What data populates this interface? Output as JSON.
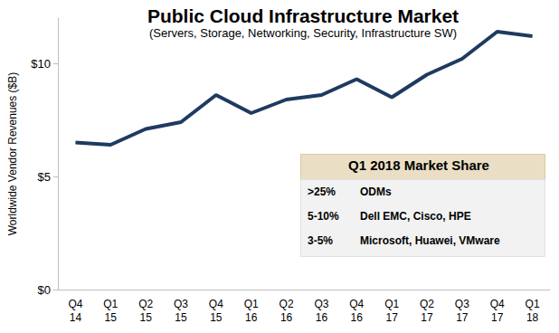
{
  "chart_data": {
    "type": "line",
    "title": "Public Cloud Infrastructure Market",
    "subtitle": "(Servers, Storage, Networking, Security, Infrastructure SW)",
    "y_label": "Worldwide Vendor Revenues ($B)",
    "categories": [
      "Q4\n14",
      "Q1\n15",
      "Q2\n15",
      "Q3\n15",
      "Q4\n15",
      "Q1\n16",
      "Q2\n16",
      "Q3\n16",
      "Q4\n16",
      "Q1\n17",
      "Q2\n17",
      "Q3\n17",
      "Q4\n17",
      "Q1\n18"
    ],
    "values": [
      6.5,
      6.4,
      7.1,
      7.4,
      8.6,
      7.8,
      8.4,
      8.6,
      9.3,
      8.5,
      9.5,
      10.2,
      11.4,
      11.2
    ],
    "color": "#1f3a60",
    "ylim": [
      0,
      12
    ],
    "yticks": [
      {
        "value": 0,
        "label": "$0"
      },
      {
        "value": 5,
        "label": "$5"
      },
      {
        "value": 10,
        "label": "$10"
      }
    ],
    "grid": false,
    "annotation": {
      "title": "Q1 2018 Market Share",
      "rows": [
        [
          ">25%",
          "ODMs"
        ],
        [
          "5-10%",
          "Dell EMC, Cisco, HPE"
        ],
        [
          "3-5%",
          "Microsoft, Huawei, VMware"
        ]
      ]
    }
  }
}
